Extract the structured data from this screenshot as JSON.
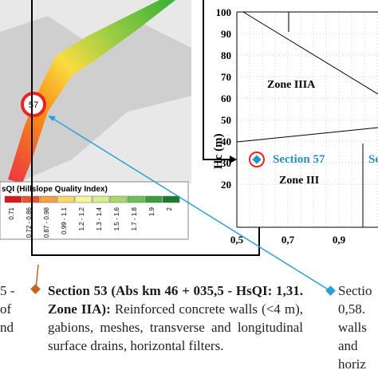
{
  "map": {
    "marker": "57",
    "legend": {
      "title": "sQI (Hillslope Quality Index)",
      "classes": [
        "0.71",
        "0.72 - 0.86",
        "0.87 - 0.98",
        "0.99 - 1.1",
        "1.2 - 1.2",
        "1.3 - 1.4",
        "1.5 - 1.6",
        "1.7 - 1.8",
        "1.9",
        "2"
      ]
    }
  },
  "diagram": {
    "y_label": "Hc (m)",
    "y_ticks": [
      "100",
      "90",
      "80",
      "70",
      "60",
      "50",
      "40",
      "30",
      "20"
    ],
    "x_ticks": [
      "0,5",
      "0,7",
      "0,9"
    ],
    "zones": [
      "Zone IIIA",
      "Zone III"
    ],
    "section": "Section 57",
    "section_cut": "Se"
  },
  "captions": {
    "left": [
      "5 -",
      "of",
      "nd"
    ],
    "middle": {
      "bold": "Section 53 (Abs km 46 + 035,5 - HsQI: 1,31. Zone IIA):",
      "text": "Reinforced concrete walls (<4 m), gabions, meshes, transverse and longitudinal surface drains, horizontal filters."
    },
    "right": [
      "Sectio",
      "0,58.",
      "walls",
      "and",
      "horiz"
    ]
  }
}
